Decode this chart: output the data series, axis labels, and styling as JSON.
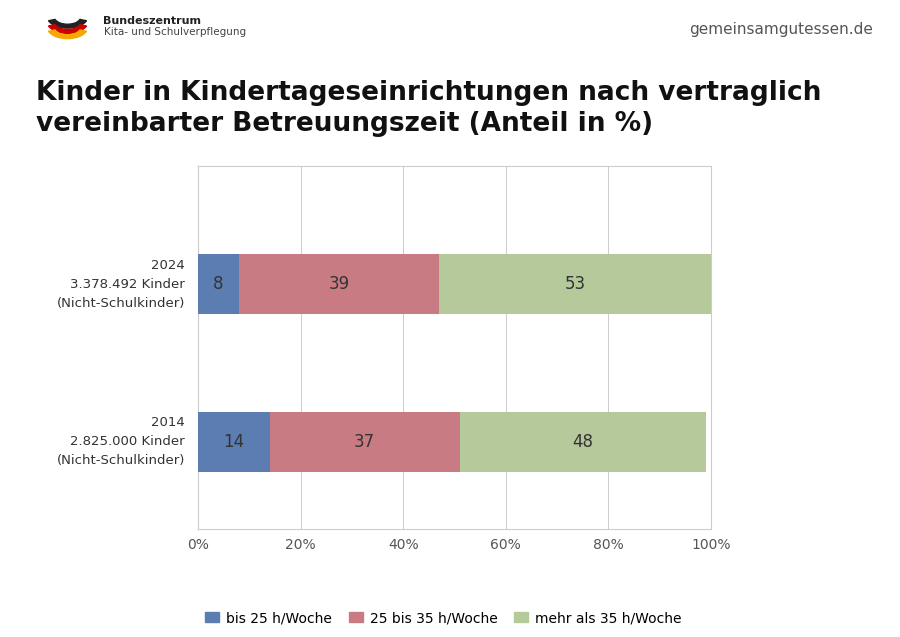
{
  "title_line1": "Kinder in Kindertageseinrichtungen nach vertraglich",
  "title_line2": "vereinbarter Betreuungszeit (Anteil in %)",
  "watermark": "gemeinsamgutessen.de",
  "bars": [
    {
      "label": "2024\n3.378.492 Kinder\n(Nicht-Schulkinder)",
      "values": [
        8,
        39,
        53
      ]
    },
    {
      "label": "2014\n2.825.000 Kinder\n(Nicht-Schulkinder)",
      "values": [
        14,
        37,
        48
      ]
    }
  ],
  "colors": [
    "#5b7db1",
    "#c97b84",
    "#b5c99a"
  ],
  "legend_labels": [
    "bis 25 h/Woche",
    "25 bis 35 h/Woche",
    "mehr als 35 h/Woche"
  ],
  "xticks": [
    0,
    20,
    40,
    60,
    80,
    100
  ],
  "xtick_labels": [
    "0%",
    "20%",
    "40%",
    "60%",
    "80%",
    "100%"
  ],
  "background_color": "#ffffff",
  "chart_bg": "#ffffff",
  "bar_height": 0.38,
  "title_fontsize": 19,
  "label_fontsize": 9.5,
  "value_fontsize": 12,
  "legend_fontsize": 10,
  "tick_fontsize": 10,
  "logo_text1": "Bundeszentrum",
  "logo_text2": "Kita- und Schulverpflegung"
}
